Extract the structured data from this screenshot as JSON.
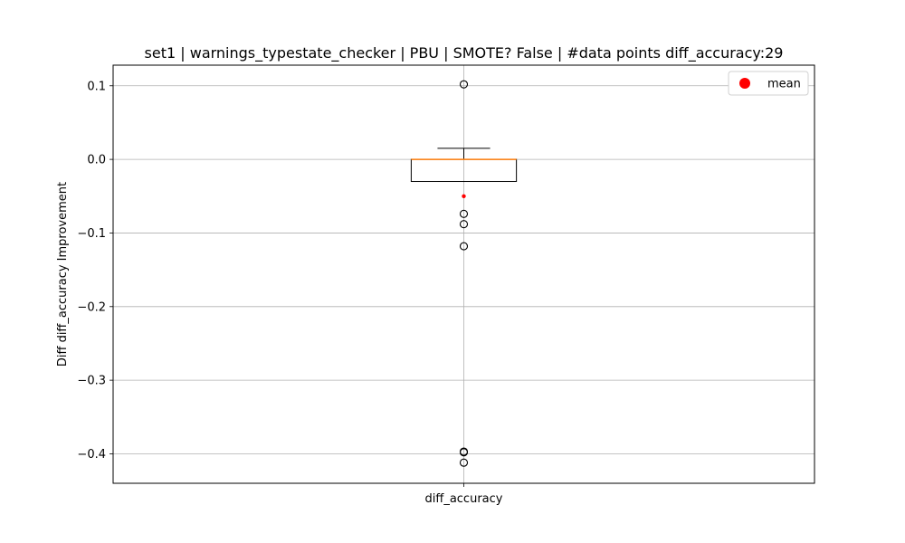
{
  "chart_data": {
    "type": "box",
    "title": "set1 | warnings_typestate_checker | PBU | SMOTE? False | #data points diff_accuracy:29",
    "xlabel": "",
    "ylabel": "Diff diff_accuracy Improvement",
    "categories": [
      "diff_accuracy"
    ],
    "ylim": [
      -0.44,
      0.128
    ],
    "yticks": [
      0.1,
      0.0,
      -0.1,
      -0.2,
      -0.3,
      -0.4
    ],
    "ytick_labels": [
      "0.1",
      "0.0",
      "−0.1",
      "−0.2",
      "−0.3",
      "−0.4"
    ],
    "grid": true,
    "legend": {
      "placement": "top-right",
      "entries": [
        {
          "label": "mean",
          "marker": "circle",
          "color": "#ff0000"
        }
      ]
    },
    "boxes": [
      {
        "name": "diff_accuracy",
        "q1": -0.03,
        "median": 0.0,
        "q3": 0.0,
        "whisker_low": -0.03,
        "whisker_high": 0.015,
        "mean": -0.05,
        "outliers": [
          0.102,
          -0.074,
          -0.088,
          -0.118,
          -0.397,
          -0.398,
          -0.412
        ]
      }
    ],
    "colors": {
      "box": "#000000",
      "median": "#ff7f0e",
      "mean": "#ff0000",
      "grid": "#b0b0b0"
    }
  }
}
